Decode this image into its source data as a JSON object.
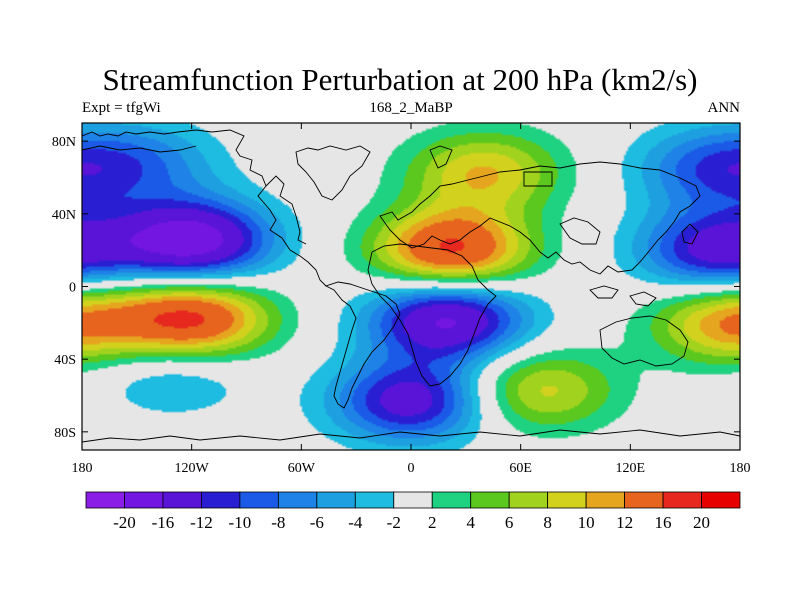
{
  "title": "Streamfunction Perturbation at 200 hPa (km2/s)",
  "left_string": "Expt = tfgWi",
  "center_string": "168_2_MaBP",
  "right_string": "ANN",
  "chart_data": {
    "type": "filled-contour-map",
    "projection": "cylindrical-equidistant",
    "lon_range": [
      -180,
      180
    ],
    "lat_range": [
      -90,
      90
    ],
    "x_ticks": [
      {
        "value": -180,
        "label": "180"
      },
      {
        "value": -120,
        "label": "120W"
      },
      {
        "value": -60,
        "label": "60W"
      },
      {
        "value": 0,
        "label": "0"
      },
      {
        "value": 60,
        "label": "60E"
      },
      {
        "value": 120,
        "label": "120E"
      },
      {
        "value": 180,
        "label": "180"
      }
    ],
    "y_ticks": [
      {
        "value": 80,
        "label": "80N"
      },
      {
        "value": 40,
        "label": "40N"
      },
      {
        "value": 0,
        "label": "0"
      },
      {
        "value": -40,
        "label": "40S"
      },
      {
        "value": -80,
        "label": "80S"
      }
    ],
    "contour_levels": [
      -20,
      -16,
      -12,
      -10,
      -8,
      -6,
      -4,
      -2,
      2,
      4,
      6,
      8,
      10,
      12,
      16,
      20
    ],
    "colorbar_labels": [
      "-20",
      "-16",
      "-12",
      "-10",
      "-8",
      "-6",
      "-4",
      "-2",
      "2",
      "4",
      "6",
      "8",
      "10",
      "12",
      "16",
      "20"
    ],
    "colors": [
      "#8a1ee6",
      "#7316e2",
      "#5a14d8",
      "#2a1ed2",
      "#1a5ae6",
      "#1e82e6",
      "#1ea0e0",
      "#1ebce0",
      "#e6e6e6",
      "#1ed282",
      "#5ac81e",
      "#a0d21e",
      "#d2d21e",
      "#e6a51e",
      "#e6641e",
      "#e6281e",
      "#e60000"
    ],
    "centers": [
      {
        "lon": -120,
        "lat": 25,
        "value": -19
      },
      {
        "lon": -120,
        "lat": -18,
        "value": 17
      },
      {
        "lon": -130,
        "lat": -48,
        "value": -5
      },
      {
        "lon": -148,
        "lat": 68,
        "value": -7
      },
      {
        "lon": 22,
        "lat": 20,
        "value": 17
      },
      {
        "lon": 20,
        "lat": -18,
        "value": -17
      },
      {
        "lon": 40,
        "lat": 63,
        "value": 10
      },
      {
        "lon": 0,
        "lat": -63,
        "value": -14
      },
      {
        "lon": 70,
        "lat": -57,
        "value": 9
      },
      {
        "lon": 168,
        "lat": 20,
        "value": -14
      },
      {
        "lon": 175,
        "lat": -20,
        "value": 12
      },
      {
        "lon": 165,
        "lat": 65,
        "value": -9
      }
    ]
  }
}
